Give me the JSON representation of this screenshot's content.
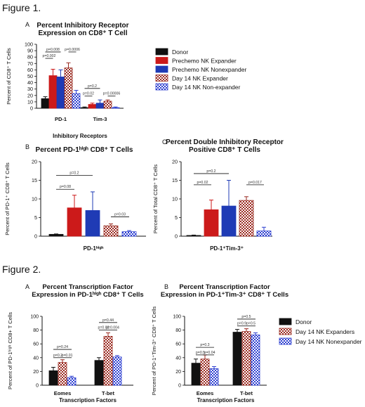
{
  "figure1_heading": "Figure 1.",
  "figure2_heading": "Figure 2.",
  "colors": {
    "donor": "#111111",
    "prechemo_expander": "#cc1a1a",
    "prechemo_nonexpander": "#1f3bb5",
    "day14_expander": "#9a2a20",
    "day14_nonexpander": "#2d3fd0"
  },
  "legend1": [
    {
      "label": "Donor",
      "style": "donor"
    },
    {
      "label": "Prechemo NK Expander",
      "style": "prechemo_expander"
    },
    {
      "label": "Prechemo NK Nonexpander",
      "style": "prechemo_nonexpander"
    },
    {
      "label": "Day 14 NK Expander",
      "style": "day14_expander"
    },
    {
      "label": "Day 14 NK Non-expander",
      "style": "day14_nonexpander"
    }
  ],
  "legend2": [
    {
      "label": "Donor",
      "style": "donor"
    },
    {
      "label": "Day 14 NK Expanders",
      "style": "day14_expander"
    },
    {
      "label": "Day 14 NK Nonexpander",
      "style": "day14_nonexpander"
    }
  ],
  "chart_data": [
    {
      "id": "1A",
      "panel_letter": "A",
      "type": "bar",
      "title": [
        "Percent Inhibitory Receptor",
        "Expression on CD8⁺ T Cell"
      ],
      "ylabel": "Percent of CD8⁺ T Cells",
      "xlabel": "Inhibitory Receptors",
      "ylim": [
        0,
        100
      ],
      "yticks": [
        0,
        10,
        20,
        30,
        40,
        50,
        60,
        70,
        80,
        90,
        100
      ],
      "categories": [
        "PD-1",
        "Tim-3"
      ],
      "series": [
        {
          "style": "donor",
          "values": [
            15,
            1
          ],
          "errors": [
            3,
            1
          ]
        },
        {
          "style": "prechemo_expander",
          "values": [
            51,
            6
          ],
          "errors": [
            10,
            2
          ]
        },
        {
          "style": "prechemo_nonexpander",
          "values": [
            49,
            8
          ],
          "errors": [
            11,
            5
          ]
        },
        {
          "style": "day14_expander",
          "values": [
            63,
            11
          ],
          "errors": [
            8,
            2
          ]
        },
        {
          "style": "day14_nonexpander",
          "values": [
            23,
            1
          ],
          "errors": [
            5,
            1
          ]
        }
      ],
      "annotations": [
        {
          "cat": 0,
          "from": 0,
          "to": 2,
          "level": 88,
          "label": "p=0.008"
        },
        {
          "cat": 0,
          "from": 0,
          "to": 1,
          "level": 78,
          "label": "p=0.002"
        },
        {
          "cat": 0,
          "from": 3,
          "to": 4,
          "level": 88,
          "label": "p=0.0006"
        },
        {
          "cat": 1,
          "from": 0,
          "to": 2,
          "level": 31,
          "label": "p=0.2"
        },
        {
          "cat": 1,
          "from": 0,
          "to": 1,
          "level": 19,
          "label": "p=0.02"
        },
        {
          "cat": 1,
          "from": 3,
          "to": 4,
          "level": 19,
          "label": "p=0.00006"
        }
      ]
    },
    {
      "id": "1B",
      "panel_letter": "B",
      "type": "bar",
      "title": [
        "Percent PD-1ʰⁱᵍʰ CD8⁺ T Cells"
      ],
      "ylabel": "Percent of PD-1⁺ CD8⁺ T Cells",
      "xlabel": "PD-1ʰⁱᵍʰ",
      "ylim": [
        0,
        20
      ],
      "yticks": [
        0,
        5,
        10,
        15,
        20
      ],
      "categories": [
        "PD-1high"
      ],
      "series": [
        {
          "style": "donor",
          "values": [
            0.5
          ],
          "errors": [
            0.1
          ]
        },
        {
          "style": "prechemo_expander",
          "values": [
            7.6
          ],
          "errors": [
            3.4
          ]
        },
        {
          "style": "prechemo_nonexpander",
          "values": [
            6.9
          ],
          "errors": [
            5.0
          ]
        },
        {
          "style": "day14_expander",
          "values": [
            2.8
          ],
          "errors": [
            0.5
          ]
        },
        {
          "style": "day14_nonexpander",
          "values": [
            1.2
          ],
          "errors": [
            0.3
          ]
        }
      ],
      "annotations": [
        {
          "cat": 0,
          "from": 0,
          "to": 2,
          "level": 16.3,
          "label": "p=0.2"
        },
        {
          "cat": 0,
          "from": 0,
          "to": 1,
          "level": 12.6,
          "label": "p=0.08"
        },
        {
          "cat": 0,
          "from": 3,
          "to": 4,
          "level": 5.2,
          "label": "p=0.03"
        }
      ]
    },
    {
      "id": "1C",
      "panel_letter": "C",
      "type": "bar",
      "title": [
        "Percent Double Inhibitory Receptor",
        "Positive CD8⁺ T Cells"
      ],
      "ylabel": "Percent of Total CD8⁺ T Cells",
      "xlabel": "PD-1⁺Tim-3⁺",
      "ylim": [
        0,
        20
      ],
      "yticks": [
        0,
        5,
        10,
        15,
        20
      ],
      "categories": [
        "PD-1+Tim-3+"
      ],
      "series": [
        {
          "style": "donor",
          "values": [
            0.2
          ],
          "errors": [
            0.1
          ]
        },
        {
          "style": "prechemo_expander",
          "values": [
            7.1
          ],
          "errors": [
            2.6
          ]
        },
        {
          "style": "prechemo_nonexpander",
          "values": [
            8.1
          ],
          "errors": [
            6.9
          ]
        },
        {
          "style": "day14_expander",
          "values": [
            9.6
          ],
          "errors": [
            1.0
          ]
        },
        {
          "style": "day14_nonexpander",
          "values": [
            1.4
          ],
          "errors": [
            1.0
          ]
        }
      ],
      "annotations": [
        {
          "cat": 0,
          "from": 0,
          "to": 2,
          "level": 16.8,
          "label": "p=0.2"
        },
        {
          "cat": 0,
          "from": 0,
          "to": 1,
          "level": 13.8,
          "label": "p=0.02"
        },
        {
          "cat": 0,
          "from": 3,
          "to": 4,
          "level": 13.8,
          "label": "p=0.017"
        }
      ]
    },
    {
      "id": "2A",
      "panel_letter": "A",
      "type": "bar",
      "title": [
        "Percent Transcription Factor",
        "Expression in PD-1ʰⁱᵍʰ CD8⁺ T Cells"
      ],
      "ylabel": "Percent of PD-1ʰⁱᵍʰ CD8+ T Cells",
      "xlabel": "Transcription Factors",
      "ylim": [
        0,
        100
      ],
      "yticks": [
        0,
        20,
        40,
        60,
        80,
        100
      ],
      "categories": [
        "Eomes",
        "T-bet"
      ],
      "series": [
        {
          "style": "donor",
          "values": [
            21,
            36
          ],
          "errors": [
            5,
            4
          ]
        },
        {
          "style": "day14_expander",
          "values": [
            33,
            71
          ],
          "errors": [
            4,
            5
          ]
        },
        {
          "style": "day14_nonexpander",
          "values": [
            11,
            41
          ],
          "errors": [
            2,
            2
          ]
        }
      ],
      "annotations": [
        {
          "cat": 0,
          "from": 0,
          "to": 2,
          "level": 52,
          "label": "p=0.24"
        },
        {
          "cat": 0,
          "from": 0,
          "to": 1,
          "level": 40,
          "label": "p=0.2"
        },
        {
          "cat": 0,
          "from": 1,
          "to": 2,
          "level": 40,
          "label": "p=0.01"
        },
        {
          "cat": 1,
          "from": 0,
          "to": 2,
          "level": 91,
          "label": "p=0.44"
        },
        {
          "cat": 1,
          "from": 0,
          "to": 1,
          "level": 80,
          "label": "p=0.02"
        },
        {
          "cat": 1,
          "from": 1,
          "to": 2,
          "level": 80,
          "label": "p=0.004"
        }
      ]
    },
    {
      "id": "2B",
      "panel_letter": "B",
      "type": "bar",
      "title": [
        "Percent Transcription Factor",
        "Expression in PD-1⁺Tim-3⁺ CD8⁺ T Cells"
      ],
      "ylabel": "Percent of PD-1⁺Tim-3⁺ CD8⁺ T Cells",
      "xlabel": "Transcription Factors",
      "ylim": [
        0,
        100
      ],
      "yticks": [
        0,
        20,
        40,
        60,
        80,
        100
      ],
      "categories": [
        "Eomes",
        "T-bet"
      ],
      "series": [
        {
          "style": "donor",
          "values": [
            32,
            77
          ],
          "errors": [
            6,
            4
          ]
        },
        {
          "style": "day14_expander",
          "values": [
            38,
            78
          ],
          "errors": [
            6,
            4
          ]
        },
        {
          "style": "day14_nonexpander",
          "values": [
            24,
            73
          ],
          "errors": [
            3,
            3
          ]
        }
      ],
      "annotations": [
        {
          "cat": 0,
          "from": 0,
          "to": 2,
          "level": 55,
          "label": "p=0.3"
        },
        {
          "cat": 0,
          "from": 0,
          "to": 1,
          "level": 44,
          "label": "p=0.5"
        },
        {
          "cat": 0,
          "from": 1,
          "to": 2,
          "level": 44,
          "label": "p=0.04"
        },
        {
          "cat": 1,
          "from": 0,
          "to": 2,
          "level": 96,
          "label": "p=0.5"
        },
        {
          "cat": 1,
          "from": 0,
          "to": 1,
          "level": 86,
          "label": "p=0.9"
        },
        {
          "cat": 1,
          "from": 1,
          "to": 2,
          "level": 86,
          "label": "p=0.5"
        }
      ]
    }
  ]
}
